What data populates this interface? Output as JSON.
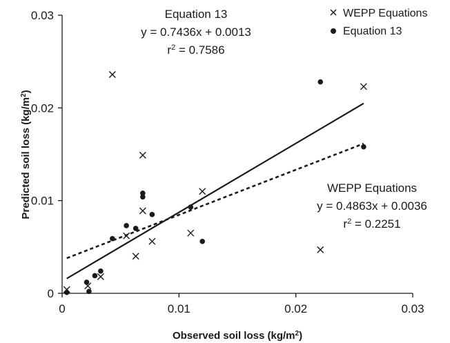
{
  "chart_data": {
    "type": "scatter",
    "xlabel": "Observed soil loss (kg/m",
    "xlabel_sup": "2",
    "xlabel_end": ")",
    "ylabel": "Predicted soil loss (kg/m",
    "ylabel_sup": "2",
    "ylabel_end": ")",
    "xlim": [
      0,
      0.03
    ],
    "ylim": [
      0,
      0.03
    ],
    "x_ticks": [
      0,
      0.01,
      0.02,
      0.03
    ],
    "x_tick_labels": [
      "0",
      "0.01",
      "0.02",
      "0.03"
    ],
    "y_ticks": [
      0,
      0.01,
      0.02,
      0.03
    ],
    "y_tick_labels": [
      "0",
      "0.01",
      "0.02",
      "0.03"
    ],
    "grid": false,
    "legend_position": "top-right",
    "series": [
      {
        "name": "WEPP Equations",
        "marker": "x",
        "color": "#1a1a1a",
        "x": [
          0.0004,
          0.0022,
          0.0033,
          0.0043,
          0.0055,
          0.0063,
          0.0069,
          0.0069,
          0.0077,
          0.011,
          0.012,
          0.0221,
          0.0258
        ],
        "y": [
          0.0004,
          0.0008,
          0.0018,
          0.0236,
          0.0062,
          0.004,
          0.0149,
          0.0089,
          0.0056,
          0.0065,
          0.011,
          0.0047,
          0.0223
        ]
      },
      {
        "name": "Equation 13",
        "marker": "circle",
        "color": "#1a1a1a",
        "x": [
          0.0004,
          0.0021,
          0.0023,
          0.0028,
          0.0033,
          0.0043,
          0.0055,
          0.0063,
          0.0069,
          0.0069,
          0.0077,
          0.011,
          0.012,
          0.0221,
          0.0258
        ],
        "y": [
          0.0001,
          0.0012,
          0.0002,
          0.0019,
          0.0024,
          0.0059,
          0.0073,
          0.007,
          0.0108,
          0.0104,
          0.0085,
          0.0093,
          0.0056,
          0.0228,
          0.0158
        ]
      }
    ],
    "fits": [
      {
        "name": "Equation 13",
        "style": "solid",
        "slope": 0.7436,
        "intercept": 0.0013,
        "x_range": [
          0.0004,
          0.0258
        ],
        "label_title": "Equation 13",
        "label_equation": "y = 0.7436x + 0.0013",
        "label_r2_prefix": "r",
        "label_r2_sup": "2",
        "label_r2_value": " = 0.7586"
      },
      {
        "name": "WEPP Equations",
        "style": "dashed",
        "slope": 0.4863,
        "intercept": 0.0036,
        "x_range": [
          0.0004,
          0.0258
        ],
        "label_title": "WEPP Equations",
        "label_equation": "y = 0.4863x + 0.0036",
        "label_r2_prefix": "r",
        "label_r2_sup": "2",
        "label_r2_value": " = 0.2251"
      }
    ]
  }
}
